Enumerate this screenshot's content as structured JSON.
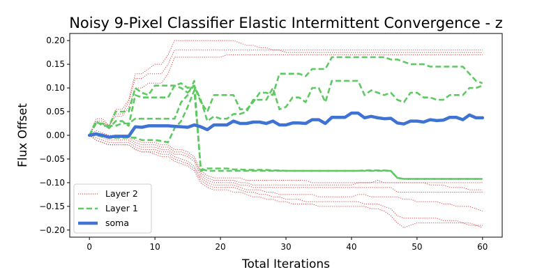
{
  "chart_data": {
    "type": "line",
    "title": "Noisy 9-Pixel Classifier Elastic Intermittent Convergence - z",
    "xlabel": "Total Iterations",
    "ylabel": "Flux Offset",
    "xlim": [
      -3,
      63
    ],
    "ylim": [
      -0.215,
      0.215
    ],
    "xticks": [
      0,
      10,
      20,
      30,
      40,
      50,
      60
    ],
    "yticks": [
      -0.2,
      -0.15,
      -0.1,
      -0.05,
      0.0,
      0.05,
      0.1,
      0.15,
      0.2
    ],
    "ytick_labels": [
      "−0.20",
      "−0.15",
      "−0.10",
      "−0.05",
      "0.00",
      "0.05",
      "0.10",
      "0.15",
      "0.20"
    ],
    "grid": false,
    "legend_position": "lower-left",
    "legend": [
      {
        "label": "Layer 2",
        "series_group": "Layer 2"
      },
      {
        "label": "Layer 1",
        "series_group": "Layer 1"
      },
      {
        "label": "soma",
        "series_group": "soma"
      }
    ],
    "styles": {
      "Layer 2": {
        "color": "#d62728",
        "width": 1,
        "dash": "1.2,1.8",
        "opacity": 0.85
      },
      "Layer 1": {
        "color": "#5ec962",
        "width": 2.6,
        "dash": "8,4",
        "opacity": 1
      },
      "soma": {
        "color": "#3e73d3",
        "width": 4.5,
        "dash": "",
        "opacity": 1
      }
    },
    "x": [
      0,
      1,
      2,
      3,
      4,
      5,
      6,
      7,
      8,
      9,
      10,
      11,
      12,
      13,
      14,
      15,
      16,
      17,
      18,
      19,
      20,
      21,
      22,
      23,
      24,
      25,
      26,
      27,
      28,
      29,
      30,
      31,
      32,
      33,
      34,
      35,
      36,
      37,
      38,
      39,
      40,
      41,
      42,
      43,
      44,
      45,
      46,
      47,
      48,
      49,
      50,
      51,
      52,
      53,
      54,
      55,
      56,
      57,
      58,
      59,
      60
    ],
    "series": [
      {
        "group": "Layer 2",
        "values": [
          0.0,
          0.035,
          0.035,
          0.02,
          0.055,
          0.055,
          0.075,
          0.13,
          0.13,
          0.14,
          0.15,
          0.15,
          0.17,
          0.2,
          0.2,
          0.2,
          0.2,
          0.2,
          0.2,
          0.2,
          0.2,
          0.2,
          0.2,
          0.195,
          0.19,
          0.19,
          0.185,
          0.185,
          0.18,
          0.18,
          0.18,
          0.18,
          0.18,
          0.18,
          0.18,
          0.18,
          0.18,
          0.18,
          0.18,
          0.18,
          0.18,
          0.18,
          0.18,
          0.18,
          0.18,
          0.18,
          0.18,
          0.18,
          0.18,
          0.18,
          0.18,
          0.18,
          0.18,
          0.18,
          0.18,
          0.18,
          0.18,
          0.18,
          0.18,
          0.18,
          0.18
        ]
      },
      {
        "group": "Layer 2",
        "values": [
          0.0,
          0.03,
          0.03,
          0.02,
          0.045,
          0.045,
          0.07,
          0.12,
          0.12,
          0.13,
          0.13,
          0.13,
          0.15,
          0.18,
          0.18,
          0.18,
          0.18,
          0.18,
          0.18,
          0.18,
          0.18,
          0.18,
          0.18,
          0.18,
          0.18,
          0.18,
          0.18,
          0.18,
          0.18,
          0.18,
          0.175,
          0.175,
          0.175,
          0.175,
          0.175,
          0.175,
          0.175,
          0.175,
          0.175,
          0.175,
          0.175,
          0.175,
          0.175,
          0.175,
          0.175,
          0.175,
          0.175,
          0.175,
          0.175,
          0.175,
          0.175,
          0.175,
          0.175,
          0.175,
          0.175,
          0.175,
          0.175,
          0.175,
          0.175,
          0.175,
          0.175
        ]
      },
      {
        "group": "Layer 2",
        "values": [
          0.0,
          0.025,
          0.025,
          0.02,
          0.04,
          0.04,
          0.06,
          0.1,
          0.1,
          0.11,
          0.11,
          0.11,
          0.13,
          0.165,
          0.165,
          0.165,
          0.165,
          0.165,
          0.165,
          0.165,
          0.165,
          0.17,
          0.17,
          0.17,
          0.17,
          0.17,
          0.17,
          0.17,
          0.17,
          0.17,
          0.17,
          0.17,
          0.17,
          0.17,
          0.17,
          0.17,
          0.17,
          0.17,
          0.17,
          0.17,
          0.17,
          0.17,
          0.17,
          0.17,
          0.17,
          0.17,
          0.17,
          0.17,
          0.17,
          0.17,
          0.17,
          0.17,
          0.17,
          0.17,
          0.17,
          0.17,
          0.17,
          0.17,
          0.17,
          0.17,
          0.17
        ]
      },
      {
        "group": "Layer 2",
        "values": [
          0.0,
          0.01,
          0.005,
          0.0,
          0.0,
          0.0,
          0.0,
          -0.01,
          -0.015,
          -0.015,
          -0.015,
          -0.02,
          -0.02,
          -0.03,
          -0.03,
          -0.035,
          -0.045,
          -0.075,
          -0.085,
          -0.09,
          -0.09,
          -0.09,
          -0.09,
          -0.09,
          -0.095,
          -0.095,
          -0.095,
          -0.095,
          -0.095,
          -0.095,
          -0.095,
          -0.095,
          -0.095,
          -0.095,
          -0.1,
          -0.1,
          -0.1,
          -0.1,
          -0.1,
          -0.1,
          -0.1,
          -0.1,
          -0.1,
          -0.1,
          -0.1,
          -0.1,
          -0.1,
          -0.1,
          -0.1,
          -0.1,
          -0.1,
          -0.1,
          -0.1,
          -0.1,
          -0.1,
          -0.1,
          -0.1,
          -0.1,
          -0.1,
          -0.1,
          -0.1
        ]
      },
      {
        "group": "Layer 2",
        "values": [
          0.0,
          0.005,
          0.0,
          -0.005,
          -0.005,
          -0.005,
          -0.005,
          -0.015,
          -0.02,
          -0.02,
          -0.02,
          -0.025,
          -0.025,
          -0.035,
          -0.035,
          -0.04,
          -0.05,
          -0.08,
          -0.09,
          -0.095,
          -0.095,
          -0.095,
          -0.095,
          -0.1,
          -0.1,
          -0.105,
          -0.105,
          -0.105,
          -0.105,
          -0.105,
          -0.105,
          -0.105,
          -0.105,
          -0.105,
          -0.105,
          -0.105,
          -0.105,
          -0.105,
          -0.105,
          -0.105,
          -0.105,
          -0.1,
          -0.1,
          -0.1,
          -0.095,
          -0.1,
          -0.1,
          -0.1,
          -0.1,
          -0.1,
          -0.1,
          -0.1,
          -0.105,
          -0.105,
          -0.105,
          -0.11,
          -0.11,
          -0.11,
          -0.115,
          -0.115,
          -0.115
        ]
      },
      {
        "group": "Layer 2",
        "values": [
          0.0,
          0.0,
          -0.005,
          -0.01,
          -0.01,
          -0.01,
          -0.01,
          -0.02,
          -0.025,
          -0.025,
          -0.025,
          -0.03,
          -0.03,
          -0.04,
          -0.04,
          -0.045,
          -0.055,
          -0.085,
          -0.095,
          -0.1,
          -0.1,
          -0.1,
          -0.1,
          -0.105,
          -0.105,
          -0.11,
          -0.11,
          -0.11,
          -0.11,
          -0.11,
          -0.11,
          -0.11,
          -0.11,
          -0.11,
          -0.11,
          -0.11,
          -0.11,
          -0.11,
          -0.11,
          -0.11,
          -0.11,
          -0.11,
          -0.11,
          -0.11,
          -0.11,
          -0.11,
          -0.11,
          -0.12,
          -0.12,
          -0.12,
          -0.12,
          -0.12,
          -0.12,
          -0.12,
          -0.12,
          -0.12,
          -0.12,
          -0.12,
          -0.12,
          -0.12,
          -0.12
        ]
      },
      {
        "group": "Layer 2",
        "values": [
          0.0,
          -0.005,
          -0.01,
          -0.015,
          -0.015,
          -0.015,
          -0.015,
          -0.025,
          -0.03,
          -0.03,
          -0.03,
          -0.035,
          -0.035,
          -0.045,
          -0.05,
          -0.055,
          -0.065,
          -0.09,
          -0.1,
          -0.105,
          -0.105,
          -0.105,
          -0.105,
          -0.11,
          -0.115,
          -0.115,
          -0.115,
          -0.12,
          -0.12,
          -0.125,
          -0.125,
          -0.125,
          -0.125,
          -0.125,
          -0.125,
          -0.13,
          -0.13,
          -0.13,
          -0.13,
          -0.13,
          -0.13,
          -0.125,
          -0.125,
          -0.13,
          -0.13,
          -0.13,
          -0.13,
          -0.13,
          -0.135,
          -0.135,
          -0.14,
          -0.14,
          -0.14,
          -0.14,
          -0.145,
          -0.145,
          -0.15,
          -0.15,
          -0.15,
          -0.155,
          -0.16
        ]
      },
      {
        "group": "Layer 2",
        "values": [
          0.0,
          -0.01,
          -0.015,
          -0.02,
          -0.02,
          -0.02,
          -0.02,
          -0.03,
          -0.035,
          -0.035,
          -0.035,
          -0.04,
          -0.04,
          -0.05,
          -0.055,
          -0.06,
          -0.07,
          -0.095,
          -0.105,
          -0.11,
          -0.11,
          -0.11,
          -0.11,
          -0.115,
          -0.12,
          -0.12,
          -0.125,
          -0.125,
          -0.13,
          -0.13,
          -0.135,
          -0.135,
          -0.135,
          -0.14,
          -0.14,
          -0.14,
          -0.14,
          -0.14,
          -0.14,
          -0.14,
          -0.14,
          -0.14,
          -0.145,
          -0.145,
          -0.145,
          -0.15,
          -0.155,
          -0.17,
          -0.175,
          -0.175,
          -0.175,
          -0.175,
          -0.175,
          -0.175,
          -0.18,
          -0.18,
          -0.18,
          -0.185,
          -0.185,
          -0.19,
          -0.19
        ]
      },
      {
        "group": "Layer 2",
        "values": [
          0.0,
          -0.01,
          -0.015,
          -0.02,
          -0.02,
          -0.02,
          -0.02,
          -0.03,
          -0.035,
          -0.035,
          -0.04,
          -0.045,
          -0.045,
          -0.055,
          -0.06,
          -0.065,
          -0.075,
          -0.1,
          -0.11,
          -0.115,
          -0.115,
          -0.115,
          -0.12,
          -0.12,
          -0.125,
          -0.13,
          -0.13,
          -0.135,
          -0.135,
          -0.14,
          -0.14,
          -0.145,
          -0.145,
          -0.145,
          -0.145,
          -0.15,
          -0.15,
          -0.15,
          -0.15,
          -0.15,
          -0.15,
          -0.15,
          -0.15,
          -0.155,
          -0.155,
          -0.16,
          -0.17,
          -0.185,
          -0.195,
          -0.19,
          -0.185,
          -0.185,
          -0.185,
          -0.185,
          -0.185,
          -0.185,
          -0.185,
          -0.185,
          -0.19,
          -0.19,
          -0.195
        ]
      },
      {
        "group": "Layer 1",
        "values": [
          0.0,
          0.03,
          0.02,
          0.02,
          0.05,
          0.05,
          0.05,
          0.1,
          0.09,
          0.085,
          0.105,
          0.105,
          0.105,
          0.105,
          0.1,
          0.09,
          0.105,
          0.07,
          0.05,
          0.085,
          0.085,
          0.085,
          0.085,
          0.055,
          0.055,
          0.07,
          0.09,
          0.09,
          0.085,
          0.13,
          0.13,
          0.13,
          0.13,
          0.125,
          0.14,
          0.14,
          0.14,
          0.165,
          0.165,
          0.165,
          0.165,
          0.165,
          0.165,
          0.165,
          0.165,
          0.165,
          0.16,
          0.16,
          0.155,
          0.15,
          0.15,
          0.15,
          0.145,
          0.145,
          0.145,
          0.145,
          0.145,
          0.145,
          0.13,
          0.115,
          0.11
        ]
      },
      {
        "group": "Layer 1",
        "values": [
          0.0,
          0.025,
          0.025,
          0.015,
          0.03,
          0.03,
          0.02,
          0.085,
          0.08,
          0.08,
          0.08,
          0.08,
          0.08,
          0.105,
          0.11,
          0.1,
          0.105,
          0.075,
          0.03,
          0.04,
          0.035,
          0.035,
          0.045,
          0.045,
          0.05,
          0.075,
          0.075,
          0.075,
          0.1,
          0.055,
          0.06,
          0.08,
          0.08,
          0.07,
          0.1,
          0.1,
          0.07,
          0.115,
          0.115,
          0.115,
          0.115,
          0.115,
          0.085,
          0.095,
          0.09,
          0.085,
          0.09,
          0.075,
          0.07,
          0.09,
          0.09,
          0.08,
          0.08,
          0.075,
          0.075,
          0.085,
          0.085,
          0.085,
          0.1,
          0.1,
          0.105
        ]
      },
      {
        "group": "Layer 1",
        "values": [
          0.0,
          0.025,
          0.025,
          0.02,
          0.02,
          0.025,
          0.025,
          0.035,
          0.035,
          0.035,
          0.035,
          0.035,
          0.035,
          0.035,
          0.07,
          0.085,
          0.115,
          -0.075,
          -0.07,
          -0.07,
          -0.07,
          -0.07,
          -0.072,
          -0.072,
          -0.073,
          -0.073,
          -0.073,
          -0.073,
          -0.074,
          -0.074,
          -0.075,
          -0.075,
          -0.075,
          -0.075,
          -0.075,
          -0.075,
          -0.075,
          -0.075,
          -0.075,
          -0.075,
          -0.075,
          -0.075,
          -0.074,
          -0.074,
          -0.074,
          -0.074,
          -0.075,
          -0.09,
          -0.092,
          -0.092,
          -0.092,
          -0.092,
          -0.092,
          -0.092,
          -0.092,
          -0.092,
          -0.092,
          -0.092,
          -0.092,
          -0.092,
          -0.092
        ]
      },
      {
        "group": "Layer 1",
        "values": [
          0.0,
          0.0,
          -0.003,
          -0.005,
          -0.005,
          -0.005,
          -0.005,
          -0.005,
          -0.01,
          -0.01,
          -0.01,
          -0.012,
          -0.015,
          0.015,
          0.03,
          0.06,
          0.095,
          -0.07,
          -0.075,
          -0.075,
          -0.075,
          -0.075,
          -0.075,
          -0.075,
          -0.075,
          -0.075,
          -0.075,
          -0.075,
          -0.075,
          -0.075,
          -0.075,
          -0.075,
          -0.075,
          -0.075,
          -0.075,
          -0.075,
          -0.075,
          -0.075,
          -0.075,
          -0.075,
          -0.075,
          -0.075,
          -0.075,
          -0.075,
          -0.075,
          -0.075,
          -0.075,
          -0.09,
          -0.092,
          -0.092,
          -0.092,
          -0.092,
          -0.092,
          -0.092,
          -0.092,
          -0.092,
          -0.092,
          -0.092,
          -0.092,
          -0.092,
          -0.092
        ]
      },
      {
        "group": "soma",
        "values": [
          0.0,
          0.003,
          0.0,
          -0.004,
          -0.002,
          -0.002,
          -0.002,
          0.018,
          0.017,
          0.02,
          0.02,
          0.02,
          0.02,
          0.019,
          0.018,
          0.017,
          0.022,
          0.018,
          0.012,
          0.022,
          0.022,
          0.022,
          0.03,
          0.025,
          0.025,
          0.028,
          0.028,
          0.025,
          0.03,
          0.022,
          0.022,
          0.026,
          0.026,
          0.025,
          0.033,
          0.033,
          0.025,
          0.038,
          0.038,
          0.038,
          0.047,
          0.047,
          0.037,
          0.04,
          0.037,
          0.035,
          0.036,
          0.026,
          0.024,
          0.03,
          0.03,
          0.028,
          0.033,
          0.031,
          0.032,
          0.038,
          0.038,
          0.033,
          0.043,
          0.037,
          0.037
        ]
      }
    ]
  }
}
